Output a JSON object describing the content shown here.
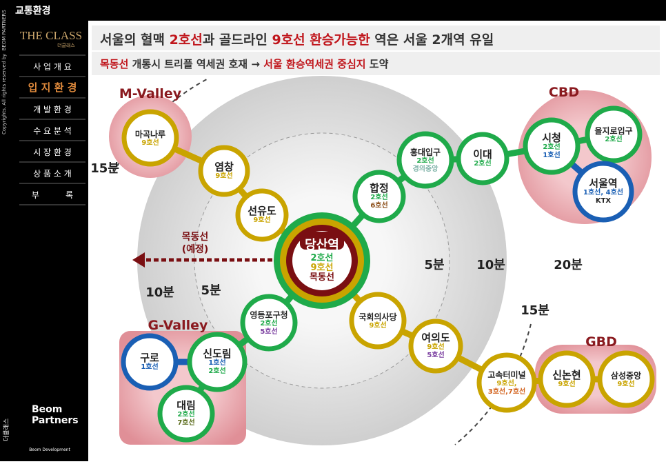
{
  "top_bar": {
    "title": "교통환경"
  },
  "sidebar": {
    "copyright": "Copyrights, All rights reserved by  BEOM PARTNERS",
    "logo": "THE CLASS",
    "logo_sub": "더클래스",
    "menu": [
      "사 업 개 요",
      "입 지 환 경",
      "개 발 환 경",
      "수 요 분 석",
      "시 장 환 경",
      "상 품 소 개",
      "부          록"
    ],
    "active_menu": 1,
    "brand_vertical": "더클래스",
    "footer_logo_1a": "Beom",
    "footer_logo_1b": "Partners",
    "footer_logo_2": "Beom Development"
  },
  "header": {
    "title": [
      {
        "text": "서울의 혈맥 ",
        "highlight": false
      },
      {
        "text": "2호선",
        "highlight": true
      },
      {
        "text": "과 골드라인 ",
        "highlight": false
      },
      {
        "text": "9호선",
        "highlight": true
      },
      {
        "text": " 환승가능한",
        "highlight": true
      },
      {
        "text": " 역은 서울 2개역 유일",
        "highlight": false
      }
    ],
    "subtitle": [
      {
        "text": "목동선",
        "highlight": true
      },
      {
        "text": " 개통시 트리플 역세권 호재 → ",
        "highlight": false
      },
      {
        "text": "서울 환승역세권 중심지",
        "highlight": true
      },
      {
        "text": " 도약",
        "highlight": false
      }
    ]
  },
  "zones": [
    "M-Valley",
    "CBD",
    "G-Valley",
    "GBD"
  ],
  "times": [
    "15분",
    "10분",
    "5분",
    "5분",
    "10분",
    "20분",
    "15분"
  ],
  "mokdong": {
    "line1": "목동선",
    "line2": "(예정)"
  },
  "stations": [
    {
      "name": "마곡나루",
      "ring": "#c9a400",
      "lines": [
        {
          "text": "9호선",
          "color": "#c9a400"
        }
      ]
    },
    {
      "name": "염창",
      "ring": "#c9a400",
      "lines": [
        {
          "text": "9호선",
          "color": "#c9a400"
        }
      ]
    },
    {
      "name": "선유도",
      "ring": "#c9a400",
      "lines": [
        {
          "text": "9호선",
          "color": "#c9a400"
        }
      ]
    },
    {
      "name": "당산역",
      "rings": [
        "#1faa4a",
        "#c9a400",
        "#7a0f12"
      ],
      "lines": [
        {
          "text": "2호선",
          "color": "#1faa4a"
        },
        {
          "text": "9호선",
          "color": "#c9a400"
        },
        {
          "text": "목동선",
          "color": "#7a0f12"
        }
      ]
    },
    {
      "name": "합정",
      "ring": "#1faa4a",
      "lines": [
        {
          "text": "2호선",
          "color": "#1faa4a"
        },
        {
          "text": "6호선",
          "color": "#8a4b14"
        }
      ]
    },
    {
      "name": "홍대입구",
      "ring": "#1faa4a",
      "lines": [
        {
          "text": "2호선",
          "color": "#1faa4a"
        },
        {
          "text": "경의중앙",
          "color": "#7fb3a8"
        }
      ]
    },
    {
      "name": "이대",
      "ring": "#1faa4a",
      "lines": [
        {
          "text": "2호선",
          "color": "#1faa4a"
        }
      ]
    },
    {
      "name": "시청",
      "ring": "#1faa4a",
      "lines": [
        {
          "text": "2호선",
          "color": "#1faa4a"
        },
        {
          "text": "1호선",
          "color": "#1a5fb4"
        }
      ]
    },
    {
      "name": "을지로입구",
      "ring": "#1faa4a",
      "lines": [
        {
          "text": "2호선",
          "color": "#1faa4a"
        }
      ]
    },
    {
      "name": "서울역",
      "ring": "#1a5fb4",
      "lines": [
        {
          "text": "1호선, 4호선",
          "color": "#1a5fb4"
        },
        {
          "text": "KTX",
          "color": "#222222"
        }
      ]
    },
    {
      "name": "영등포구청",
      "ring": "#1faa4a",
      "lines": [
        {
          "text": "2호선",
          "color": "#1faa4a"
        },
        {
          "text": "5호선",
          "color": "#7b3fa0"
        }
      ]
    },
    {
      "name": "신도림",
      "ring": "#1faa4a",
      "lines": [
        {
          "text": "1호선",
          "color": "#1a5fb4"
        },
        {
          "text": "2호선",
          "color": "#1faa4a"
        }
      ]
    },
    {
      "name": "구로",
      "ring": "#1a5fb4",
      "lines": [
        {
          "text": "1호선",
          "color": "#1a5fb4"
        }
      ]
    },
    {
      "name": "대림",
      "ring": "#1faa4a",
      "lines": [
        {
          "text": "2호선",
          "color": "#1faa4a"
        },
        {
          "text": "7호선",
          "color": "#5a6b1a"
        }
      ]
    },
    {
      "name": "국회의사당",
      "ring": "#c9a400",
      "lines": [
        {
          "text": "9호선",
          "color": "#c9a400"
        }
      ]
    },
    {
      "name": "여의도",
      "ring": "#c9a400",
      "lines": [
        {
          "text": "9호선",
          "color": "#c9a400"
        },
        {
          "text": "5호선",
          "color": "#7b3fa0"
        }
      ]
    },
    {
      "name": "고속터미널",
      "ring": "#c9a400",
      "lines": [
        {
          "text": "9호선,",
          "color": "#c9a400"
        },
        {
          "text": "3호선,7호선",
          "color": "#d2601a"
        }
      ]
    },
    {
      "name": "신논현",
      "ring": "#c9a400",
      "lines": [
        {
          "text": "9호선",
          "color": "#c9a400"
        }
      ]
    },
    {
      "name": "삼성중앙",
      "ring": "#c9a400",
      "lines": [
        {
          "text": "9호선",
          "color": "#c9a400"
        }
      ]
    }
  ]
}
